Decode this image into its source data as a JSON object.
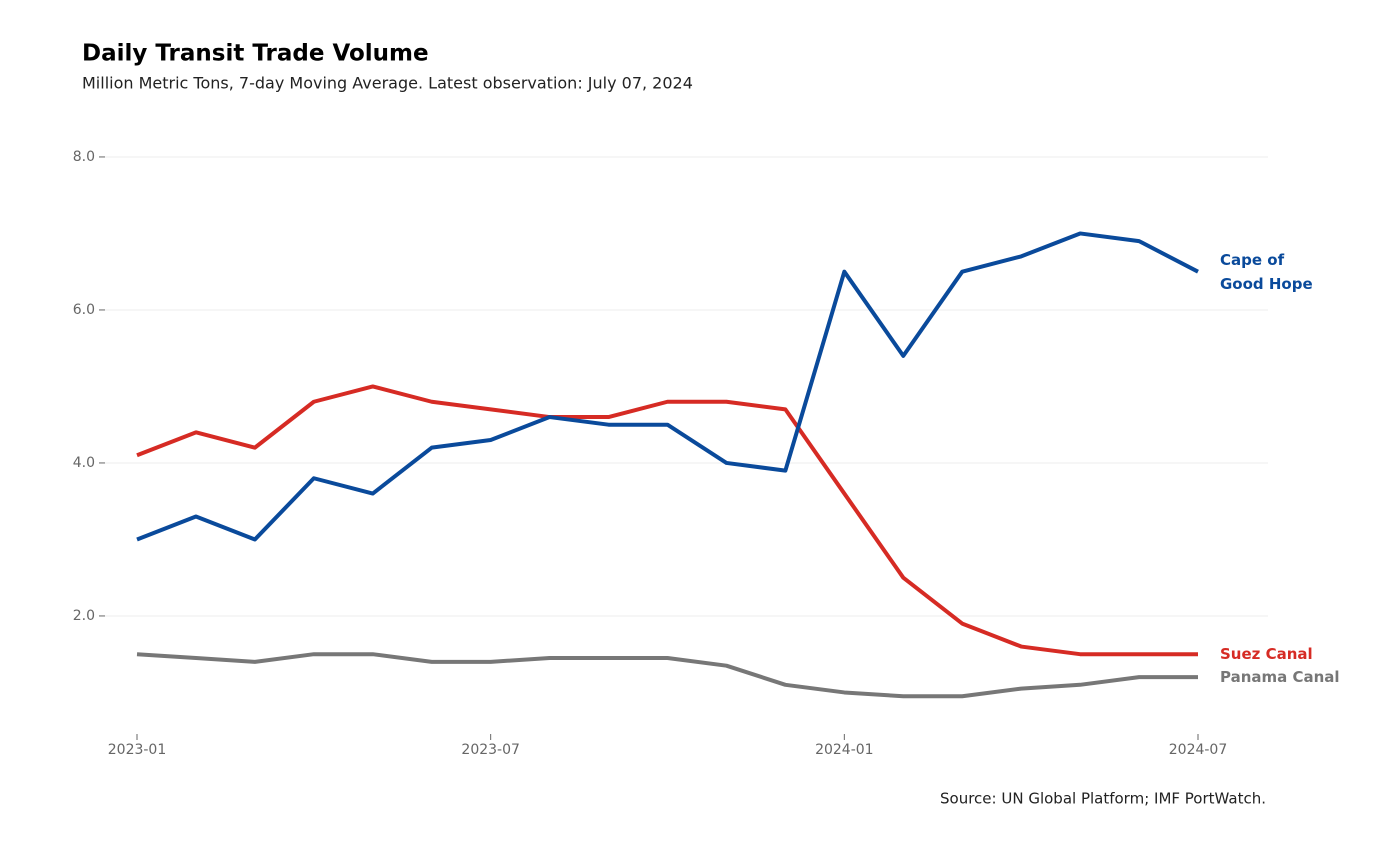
{
  "chart_data": {
    "type": "line",
    "title": "Daily Transit Trade Volume",
    "subtitle": "Million Metric Tons, 7-day Moving Average. Latest observation: July 07, 2024",
    "source": "Source: UN Global Platform; IMF PortWatch.",
    "x": [
      "2023-01",
      "2023-02",
      "2023-03",
      "2023-04",
      "2023-05",
      "2023-06",
      "2023-07",
      "2023-08",
      "2023-09",
      "2023-10",
      "2023-11",
      "2023-12",
      "2024-01",
      "2024-02",
      "2024-03",
      "2024-04",
      "2024-05",
      "2024-06",
      "2024-07"
    ],
    "xticks": [
      "2023-01",
      "2023-07",
      "2024-01",
      "2024-07"
    ],
    "ylim": [
      0.3,
      8.3
    ],
    "yticks": [
      {
        "value": 2,
        "label": "2.0"
      },
      {
        "value": 4,
        "label": "4.0"
      },
      {
        "value": 6,
        "label": "6.0"
      },
      {
        "value": 8,
        "label": "8.0"
      }
    ],
    "grid": true,
    "series": [
      {
        "name": "Panama Canal",
        "color": "#777777",
        "values": [
          1.5,
          1.45,
          1.4,
          1.5,
          1.5,
          1.4,
          1.4,
          1.45,
          1.45,
          1.45,
          1.35,
          1.1,
          1.0,
          0.95,
          0.95,
          1.05,
          1.1,
          1.2,
          1.2
        ]
      },
      {
        "name": "Suez Canal",
        "color": "#d62b24",
        "values": [
          4.1,
          4.4,
          4.2,
          4.8,
          5.0,
          4.8,
          4.7,
          4.6,
          4.6,
          4.8,
          4.8,
          4.7,
          3.6,
          2.5,
          1.9,
          1.6,
          1.5,
          1.5,
          1.5
        ]
      },
      {
        "name": "Cape of Good Hope",
        "color": "#0a4a9b",
        "values": [
          3.0,
          3.3,
          3.0,
          3.8,
          3.6,
          4.2,
          4.3,
          4.6,
          4.5,
          4.5,
          4.0,
          3.9,
          6.5,
          5.4,
          6.5,
          6.7,
          7.0,
          6.9,
          6.5
        ]
      }
    ]
  }
}
